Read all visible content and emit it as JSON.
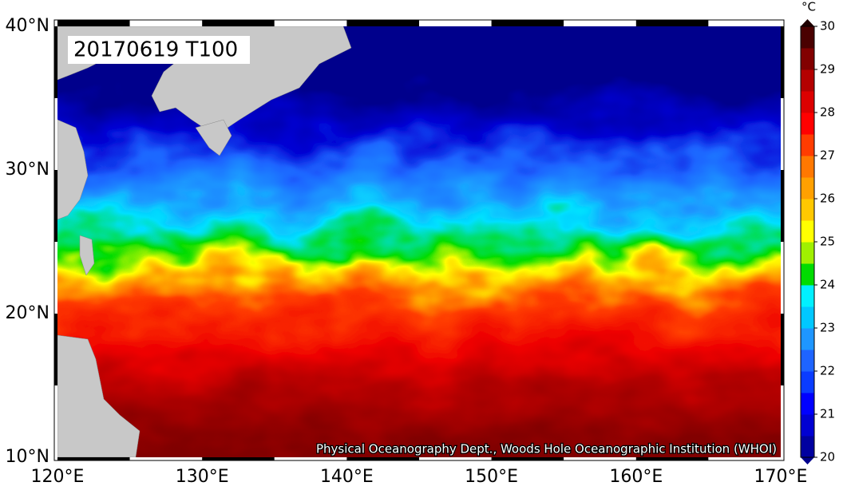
{
  "title": "20170619 T100",
  "credit": "Physical Oceanography Dept., Woods Hole Oceanographic Institution (WHOI)",
  "x_axis": {
    "labels": [
      "120°E",
      "130°E",
      "140°E",
      "150°E",
      "160°E",
      "170°E"
    ]
  },
  "y_axis": {
    "labels": [
      "40°N",
      "30°N",
      "20°N",
      "10°N"
    ]
  },
  "colorbar": {
    "unit": "°C",
    "ticks": [
      20,
      21,
      22,
      23,
      24,
      25,
      26,
      27,
      28,
      29,
      30
    ],
    "colors": [
      "#0000a0",
      "#0000d2",
      "#0000ff",
      "#0a3cff",
      "#1e64ff",
      "#1e96ff",
      "#00c8ff",
      "#00f0ff",
      "#00dc00",
      "#a0f000",
      "#ffff00",
      "#ffc800",
      "#ffa000",
      "#ff7800",
      "#ff3c00",
      "#ff0000",
      "#dc0000",
      "#b40000",
      "#820000",
      "#4a0000"
    ],
    "under_color": "#00008c",
    "over_color": "#200000"
  }
}
